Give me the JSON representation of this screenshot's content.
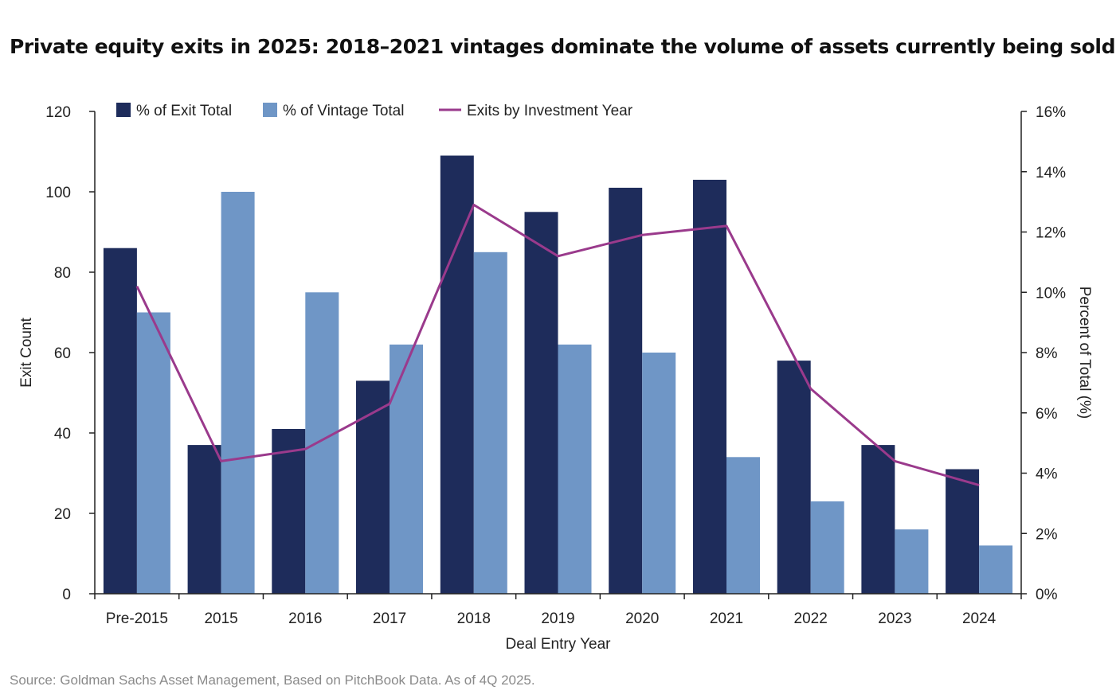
{
  "title": "Private equity exits in 2025: 2018–2021 vintages dominate the volume of assets currently being sold",
  "source": "Source: Goldman Sachs Asset Management, Based on PitchBook Data. As of 4Q 2025.",
  "colors": {
    "exit_total": "#1e2c5b",
    "vintage_total": "#6f96c6",
    "exits_line": "#9a3a8c",
    "axis": "#222222"
  },
  "chart_data": {
    "type": "bar",
    "xlabel": "Deal Entry Year",
    "ylabel": "Exit Count",
    "ylabel_right": "Percent of Total (%)",
    "ylim": [
      0,
      120
    ],
    "yticks": [
      "0",
      "20",
      "40",
      "60",
      "80",
      "100",
      "120"
    ],
    "ylim_right": [
      0,
      16
    ],
    "yticks_right": [
      "0%",
      "2%",
      "4%",
      "6%",
      "8%",
      "10%",
      "12%",
      "14%",
      "16%"
    ],
    "categories": [
      "Pre-2015",
      "2015",
      "2016",
      "2017",
      "2018",
      "2019",
      "2020",
      "2021",
      "2022",
      "2023",
      "2024"
    ],
    "legend_position": "top-left",
    "grid": false,
    "series": [
      {
        "name": "% of Exit Total",
        "type": "bar",
        "axis": "left",
        "values": [
          86,
          37,
          41,
          53,
          109,
          95,
          101,
          103,
          58,
          37,
          31
        ]
      },
      {
        "name": "% of Vintage Total",
        "type": "bar",
        "axis": "left",
        "values": [
          70,
          100,
          75,
          62,
          85,
          62,
          60,
          34,
          23,
          16,
          12
        ]
      },
      {
        "name": "Exits by Investment Year",
        "type": "line",
        "axis": "right",
        "values": [
          10.2,
          4.4,
          4.8,
          6.3,
          12.9,
          11.2,
          11.9,
          12.2,
          6.8,
          4.4,
          3.6
        ]
      }
    ]
  }
}
